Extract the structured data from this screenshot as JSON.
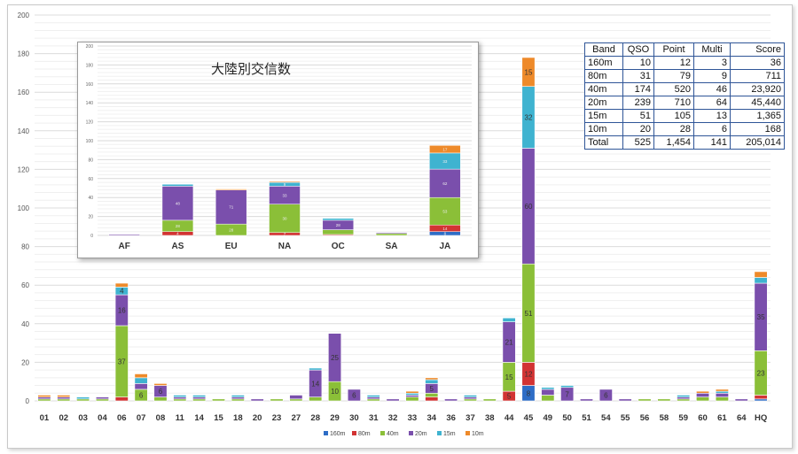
{
  "colors": {
    "160m": "#2e6dc6",
    "80m": "#d23333",
    "40m": "#8bbf38",
    "20m": "#7a4fac",
    "15m": "#3fb3d0",
    "10m": "#ee8a2a",
    "grid": "#e6e6e6",
    "table_border": "#2f5597"
  },
  "chart_data": [
    {
      "type": "bar",
      "stacked": true,
      "ylim": [
        0,
        200
      ],
      "yticks": [
        0,
        20,
        40,
        60,
        80,
        100,
        120,
        140,
        160,
        180,
        200
      ],
      "grid": true,
      "legend_position": "bottom",
      "categories": [
        "01",
        "02",
        "03",
        "04",
        "06",
        "07",
        "08",
        "11",
        "14",
        "15",
        "18",
        "20",
        "23",
        "27",
        "28",
        "29",
        "30",
        "31",
        "32",
        "33",
        "34",
        "36",
        "37",
        "38",
        "44",
        "45",
        "49",
        "50",
        "51",
        "54",
        "55",
        "56",
        "58",
        "59",
        "60",
        "61",
        "64",
        "HQ"
      ],
      "series": [
        {
          "name": "160m",
          "values": [
            0,
            0,
            0,
            0,
            0,
            0,
            0,
            0,
            0,
            0,
            0,
            0,
            0,
            0,
            0,
            0,
            0,
            0,
            0,
            0,
            0,
            0,
            0,
            0,
            0,
            8,
            0,
            0,
            0,
            0,
            0,
            0,
            0,
            0,
            0,
            0,
            0,
            1
          ]
        },
        {
          "name": "80m",
          "values": [
            0,
            0,
            0,
            0,
            2,
            0,
            0,
            0,
            0,
            0,
            0,
            0,
            0,
            0,
            0,
            0,
            0,
            0,
            0,
            0,
            2,
            0,
            0,
            0,
            5,
            12,
            0,
            0,
            0,
            0,
            0,
            0,
            0,
            0,
            0,
            0,
            0,
            2
          ]
        },
        {
          "name": "40m",
          "values": [
            1,
            1,
            1,
            1,
            37,
            6,
            2,
            1,
            1,
            1,
            1,
            0,
            1,
            1,
            2,
            10,
            0,
            1,
            0,
            2,
            2,
            0,
            1,
            1,
            15,
            51,
            3,
            0,
            0,
            0,
            0,
            1,
            1,
            1,
            2,
            2,
            0,
            23
          ]
        },
        {
          "name": "20m",
          "values": [
            1,
            1,
            0,
            1,
            16,
            3,
            6,
            1,
            1,
            0,
            1,
            1,
            0,
            2,
            14,
            25,
            6,
            1,
            1,
            1,
            5,
            1,
            1,
            0,
            21,
            60,
            3,
            7,
            1,
            6,
            1,
            0,
            0,
            1,
            2,
            2,
            1,
            35
          ]
        },
        {
          "name": "15m",
          "values": [
            0,
            0,
            1,
            0,
            4,
            3,
            0,
            1,
            1,
            0,
            1,
            0,
            0,
            0,
            1,
            0,
            0,
            1,
            0,
            1,
            2,
            0,
            1,
            0,
            2,
            32,
            1,
            1,
            0,
            0,
            0,
            0,
            0,
            1,
            0,
            1,
            0,
            3
          ]
        },
        {
          "name": "10m",
          "values": [
            1,
            1,
            0,
            0,
            2,
            2,
            1,
            0,
            0,
            0,
            0,
            0,
            0,
            0,
            0,
            0,
            0,
            0,
            0,
            1,
            1,
            0,
            0,
            0,
            0,
            15,
            0,
            0,
            0,
            0,
            0,
            0,
            0,
            0,
            1,
            1,
            0,
            3
          ]
        }
      ],
      "labeled_values": [
        [
          "1",
          "1",
          "1",
          "1",
          "",
          "",
          ""
        ],
        [
          "1"
        ],
        [
          "1"
        ],
        [
          "1"
        ],
        [
          "2",
          "37",
          "16",
          "4"
        ],
        [
          "6",
          "3"
        ],
        [
          "2",
          "6"
        ],
        [
          "1"
        ],
        [
          "1"
        ],
        [
          "1"
        ],
        [
          "1"
        ],
        [
          "1"
        ],
        [
          "1"
        ],
        [
          "2"
        ],
        [
          "14"
        ],
        [
          "10",
          "25"
        ],
        [
          "6"
        ],
        [
          "1"
        ],
        [
          "1"
        ],
        [
          "2"
        ],
        [
          "2",
          "2",
          "5",
          "2"
        ],
        [
          "1"
        ],
        [
          "1"
        ],
        [
          "1"
        ],
        [
          "5",
          "15",
          "21",
          "2"
        ],
        [
          "8",
          "12",
          "51",
          "60",
          "32",
          "15"
        ],
        [
          "3",
          "3"
        ],
        [
          "7"
        ],
        [
          "1"
        ],
        [
          "6"
        ],
        [
          "1"
        ],
        [
          "1"
        ],
        [
          "1"
        ],
        [
          "1"
        ],
        [
          "2"
        ],
        [
          "2",
          "2"
        ],
        [
          "1"
        ],
        [
          "1",
          "2",
          "23",
          "35",
          "3",
          "3"
        ]
      ]
    },
    {
      "type": "bar",
      "stacked": true,
      "title": "大陸別交信数",
      "ylim": [
        0,
        200
      ],
      "yticks": [
        0,
        20,
        40,
        60,
        80,
        100,
        120,
        140,
        160,
        180,
        200
      ],
      "grid": true,
      "categories": [
        "AF",
        "AS",
        "EU",
        "NA",
        "OC",
        "SA",
        "JA"
      ],
      "series": [
        {
          "name": "160m",
          "values": [
            0,
            0,
            0,
            0,
            0,
            0,
            4
          ]
        },
        {
          "name": "80m",
          "values": [
            0,
            4,
            0,
            3,
            1,
            0,
            7
          ]
        },
        {
          "name": "40m",
          "values": [
            0,
            12,
            12,
            30,
            5,
            2,
            29
          ]
        },
        {
          "name": "20m",
          "values": [
            1,
            36,
            36,
            19,
            10,
            1,
            30
          ]
        },
        {
          "name": "15m",
          "values": [
            0,
            2,
            0,
            4,
            2,
            0,
            17
          ]
        },
        {
          "name": "10m",
          "values": [
            0,
            0,
            1,
            1,
            0,
            0,
            8
          ]
        }
      ],
      "data_labels": [
        [
          "",
          "",
          "",
          "",
          "",
          ""
        ],
        [
          "",
          "4",
          "28",
          "48",
          "2",
          ""
        ],
        [
          "",
          "",
          "28",
          "71",
          "",
          ""
        ],
        [
          "",
          "7",
          "30",
          "33",
          "9",
          "1"
        ],
        [
          "",
          "",
          "",
          "28",
          "",
          ""
        ],
        [
          "",
          "",
          "2",
          "",
          "",
          ""
        ],
        [
          "8",
          "14",
          "53",
          "62",
          "33",
          "17"
        ]
      ]
    }
  ],
  "score_table": {
    "headers": [
      "Band",
      "QSO",
      "Point",
      "Multi",
      "Score"
    ],
    "rows": [
      [
        "160m",
        "10",
        "12",
        "3",
        "36"
      ],
      [
        "80m",
        "31",
        "79",
        "9",
        "711"
      ],
      [
        "40m",
        "174",
        "520",
        "46",
        "23,920"
      ],
      [
        "20m",
        "239",
        "710",
        "64",
        "45,440"
      ],
      [
        "15m",
        "51",
        "105",
        "13",
        "1,365"
      ],
      [
        "10m",
        "20",
        "28",
        "6",
        "168"
      ],
      [
        "Total",
        "525",
        "1,454",
        "141",
        "205,014"
      ]
    ]
  }
}
